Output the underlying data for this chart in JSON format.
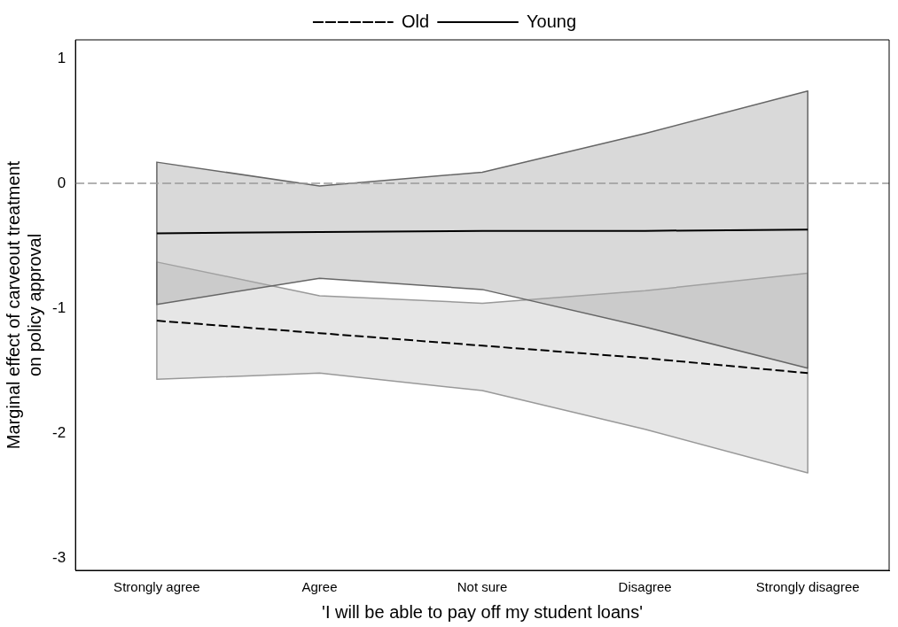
{
  "chart_data": {
    "type": "line",
    "xlabel": "'I will be able to pay off my student loans'",
    "ylabel": "Marginal effect of carveout treatment\non policy approval",
    "categories": [
      "Strongly agree",
      "Agree",
      "Not sure",
      "Disagree",
      "Strongly disagree"
    ],
    "series": [
      {
        "name": "Old",
        "color": "#000000",
        "line_style": "dashed",
        "values": [
          -1.1,
          -1.2,
          -1.3,
          -1.4,
          -1.52
        ],
        "lower": [
          -1.57,
          -1.52,
          -1.66,
          -1.97,
          -2.32
        ],
        "upper": [
          -0.63,
          -0.9,
          -0.96,
          -0.86,
          -0.72
        ]
      },
      {
        "name": "Young",
        "color": "#000000",
        "line_style": "solid",
        "values": [
          -0.4,
          -0.39,
          -0.38,
          -0.38,
          -0.37
        ],
        "lower": [
          -0.97,
          -0.76,
          -0.85,
          -1.15,
          -1.48
        ],
        "upper": [
          0.17,
          -0.02,
          0.09,
          0.4,
          0.74
        ]
      }
    ],
    "ylim": [
      -3.1,
      1.15
    ],
    "yticks": [
      -3,
      -2,
      -1,
      0,
      1
    ],
    "grid": false,
    "legend": "top",
    "marker": "none",
    "ref_lines": [
      {
        "axis": "y",
        "value": 0,
        "color": "#999999",
        "line_style": "dashed"
      }
    ]
  }
}
